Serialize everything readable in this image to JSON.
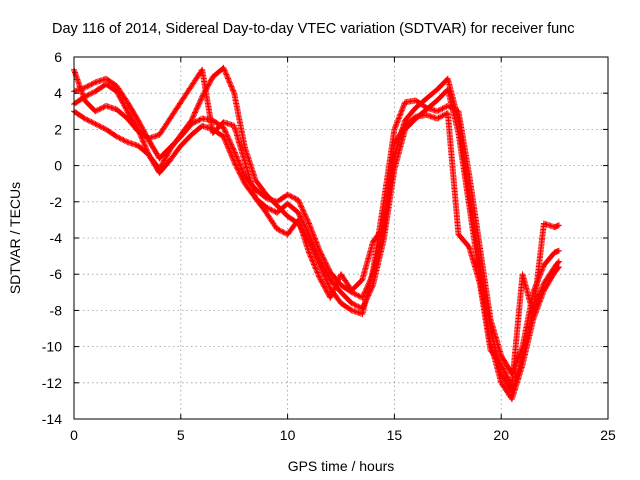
{
  "chart_data": {
    "type": "scatter",
    "title": "Day 116 of 2014, Sidereal Day-to-day VTEC variation (SDTVAR) for receiver func",
    "xlabel": "GPS time / hours",
    "ylabel": "SDTVAR / TECUs",
    "xlim": [
      0,
      25
    ],
    "ylim": [
      -14,
      6
    ],
    "xticks": [
      "0",
      "5",
      "10",
      "15",
      "20",
      "25"
    ],
    "yticks": [
      "6",
      "4",
      "2",
      "0",
      "-2",
      "-4",
      "-6",
      "-8",
      "-10",
      "-12",
      "-14"
    ],
    "grid": true,
    "marker": "plus",
    "series_color": "#ff0000",
    "series": [
      {
        "x": [
          0,
          0.5,
          1,
          1.5,
          2,
          2.5,
          3,
          3.5,
          4,
          4.5,
          5,
          5.5,
          6,
          6.5,
          7,
          7.5,
          8,
          8.5,
          9,
          9.5,
          10,
          10.5,
          11,
          11.5,
          12,
          12.5,
          13,
          13.5,
          14,
          14.5,
          15,
          15.5,
          16,
          16.5,
          17,
          17.5,
          18,
          18.5,
          19,
          19.5,
          20,
          20.5,
          21,
          21.5,
          22,
          22.5,
          22.7
        ],
        "y": [
          4.1,
          4.3,
          4.6,
          4.8,
          4.4,
          3.5,
          2.5,
          1.4,
          0.4,
          1.0,
          1.6,
          2.3,
          2.6,
          2.5,
          2.1,
          0.8,
          -0.6,
          -1.3,
          -1.8,
          -2.0,
          -1.6,
          -1.9,
          -3.2,
          -4.7,
          -5.9,
          -6.6,
          -7.0,
          -7.3,
          -6.0,
          -3.5,
          0.5,
          2.5,
          3.2,
          3.7,
          4.2,
          4.8,
          2.5,
          -1.5,
          -5.5,
          -9.0,
          -11.5,
          -12.5,
          -10.5,
          -8.0,
          -6.5,
          -5.6,
          -5.3
        ]
      },
      {
        "x": [
          0,
          0.5,
          1,
          1.5,
          2,
          2.5,
          3,
          3.5,
          4,
          4.5,
          5,
          5.5,
          6,
          6.5,
          7,
          7.5,
          8,
          8.5,
          9,
          9.5,
          10,
          10.5,
          11,
          11.5,
          12,
          12.5,
          13,
          13.5,
          14,
          14.5,
          15,
          15.5,
          16,
          16.5,
          17,
          17.5,
          18,
          18.5,
          19,
          19.5,
          20,
          20.5,
          21,
          21.5,
          22,
          22.5,
          22.7
        ],
        "y": [
          3.4,
          3.8,
          4.1,
          4.5,
          4.1,
          3.0,
          2.0,
          0.6,
          -0.4,
          0.3,
          1.1,
          1.7,
          2.2,
          2.0,
          1.6,
          0.2,
          -1.0,
          -1.8,
          -2.3,
          -2.6,
          -2.1,
          -2.6,
          -3.8,
          -5.2,
          -6.3,
          -7.0,
          -7.6,
          -7.9,
          -6.6,
          -4.1,
          -0.2,
          2.0,
          2.6,
          3.1,
          3.6,
          4.2,
          1.8,
          -2.2,
          -6.2,
          -9.8,
          -12.0,
          -12.9,
          -11.0,
          -8.5,
          -6.9,
          -5.9,
          -5.6
        ]
      },
      {
        "x": [
          0,
          0.5,
          1,
          1.5,
          2,
          2.5,
          3,
          3.5,
          4,
          4.5,
          5,
          5.5,
          6,
          6.5,
          7,
          7.5,
          8,
          8.5,
          9,
          9.5,
          10,
          10.5,
          11,
          11.5,
          12,
          12.5,
          13,
          13.5,
          14,
          14.5,
          15,
          15.5,
          16,
          16.5,
          17,
          17.5,
          18,
          18.5,
          19,
          19.5,
          20,
          20.5,
          21,
          21.5,
          22,
          22.5,
          22.7
        ],
        "y": [
          3.0,
          2.6,
          2.3,
          2.0,
          1.6,
          1.3,
          1.1,
          0.6,
          -0.2,
          0.9,
          1.7,
          2.5,
          3.8,
          4.9,
          5.4,
          4.0,
          1.0,
          -0.8,
          -1.6,
          -2.2,
          -2.8,
          -3.2,
          -4.2,
          -5.5,
          -6.8,
          -7.6,
          -8.0,
          -8.2,
          -5.8,
          -2.0,
          2.0,
          3.5,
          3.6,
          3.2,
          3.0,
          3.3,
          3.0,
          -0.5,
          -4.5,
          -8.5,
          -10.5,
          -11.5,
          -10.0,
          -7.0,
          -5.5,
          -4.8,
          -4.7
        ]
      },
      {
        "x": [
          0,
          0.5,
          1,
          1.5,
          2,
          2.5,
          3,
          3.5,
          4,
          4.5,
          5,
          5.5,
          6,
          6.5,
          7,
          7.5,
          8,
          8.5,
          9,
          9.5,
          10,
          10.5,
          11,
          11.5,
          12,
          12.5,
          13,
          13.5,
          14,
          14.5,
          15,
          15.5,
          16,
          16.5,
          17,
          17.5,
          18,
          18.5,
          19,
          19.5,
          20,
          20.5,
          21,
          21.5,
          22,
          22.5,
          22.7
        ],
        "y": [
          5.3,
          3.6,
          3.0,
          3.3,
          3.1,
          2.6,
          1.9,
          1.5,
          1.7,
          2.6,
          3.5,
          4.4,
          5.3,
          1.8,
          2.4,
          2.2,
          0.2,
          -1.8,
          -2.6,
          -3.5,
          -3.8,
          -3.0,
          -4.8,
          -6.2,
          -7.3,
          -6.0,
          -6.9,
          -6.3,
          -4.2,
          -3.4,
          1.2,
          2.2,
          2.7,
          2.8,
          2.6,
          2.9,
          -3.8,
          -4.5,
          -6.5,
          -10.2,
          -11.0,
          -12.2,
          -6.0,
          -8.2,
          -3.2,
          -3.4,
          -3.3
        ]
      }
    ]
  }
}
